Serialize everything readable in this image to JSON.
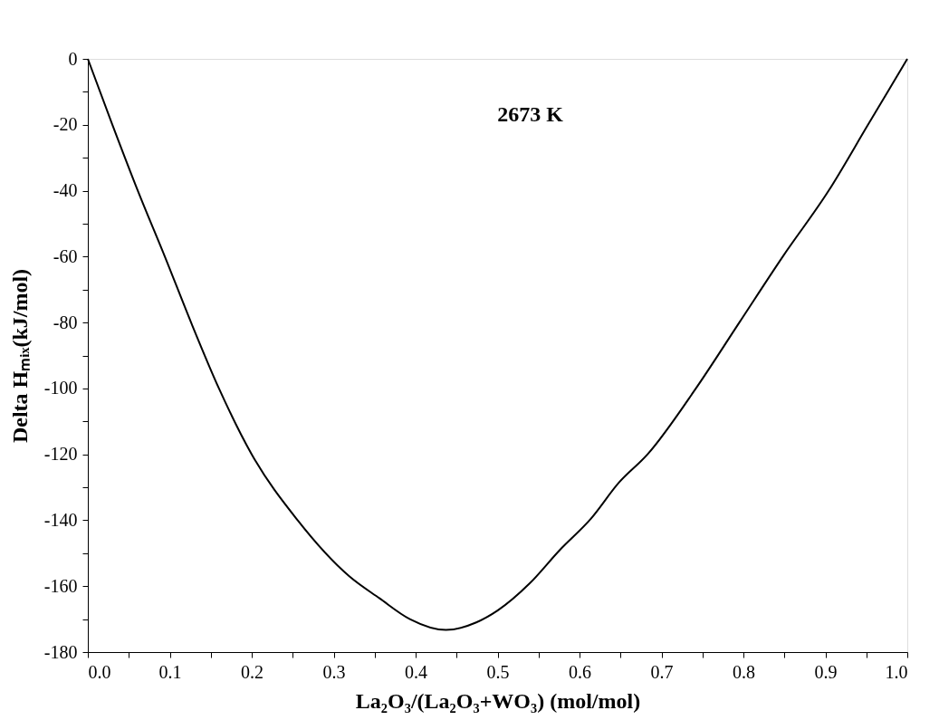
{
  "chart_data": {
    "type": "line",
    "xlabel": "La₂O₃/(La₂O₃+WO₃) (mol/mol)",
    "ylabel": "Delta Hₘᵢₓ(kJ/mol)",
    "annotations": [
      "2673 K"
    ],
    "x": [
      0,
      0.03,
      0.061,
      0.094,
      0.126,
      0.16,
      0.2,
      0.256,
      0.319,
      0.356,
      0.393,
      0.437,
      0.474,
      0.5,
      0.539,
      0.576,
      0.614,
      0.648,
      0.683,
      0.742,
      0.795,
      0.848,
      0.904,
      0.952,
      1.0
    ],
    "series": [
      {
        "color": "#000000",
        "values": [
          0,
          -20,
          -40,
          -60,
          -80,
          -100,
          -120,
          -140,
          -157,
          -163.7,
          -170,
          -173.3,
          -171,
          -167.4,
          -159.2,
          -149,
          -139.5,
          -128.6,
          -120,
          -100,
          -80,
          -60,
          -40,
          -20,
          0
        ]
      }
    ],
    "xlim": [
      0,
      1.0
    ],
    "ylim": [
      -180,
      0
    ],
    "xticks": [
      {
        "value": 0,
        "label": "0.0"
      },
      {
        "value": 0.05,
        "label": null
      },
      0.1,
      {
        "value": 0.15,
        "label": null
      },
      0.2,
      {
        "value": 0.25,
        "label": null
      },
      0.3,
      {
        "value": 0.35,
        "label": null
      },
      0.4,
      {
        "value": 0.45,
        "label": null
      },
      0.5,
      {
        "value": 0.55,
        "label": null
      },
      0.6,
      {
        "value": 0.65,
        "label": null
      },
      0.7,
      {
        "value": 0.75,
        "label": null
      },
      0.8,
      {
        "value": 0.85,
        "label": null
      },
      0.9,
      {
        "value": 0.95,
        "label": null
      },
      {
        "value": 1.0,
        "label": "1.0"
      }
    ],
    "yticks": [
      -180,
      {
        "value": -170,
        "label": null
      },
      -160,
      {
        "value": -150,
        "label": null
      },
      -140,
      {
        "value": -130,
        "label": null
      },
      -120,
      {
        "value": -110,
        "label": null
      },
      -100,
      {
        "value": -90,
        "label": null
      },
      -80,
      {
        "value": -70,
        "label": null
      },
      -60,
      {
        "value": -50,
        "label": null
      },
      -40,
      {
        "value": -30,
        "label": null
      },
      -20,
      {
        "value": -10,
        "label": null
      },
      0
    ],
    "grid": false,
    "marker": "none",
    "line_style": "solid"
  }
}
